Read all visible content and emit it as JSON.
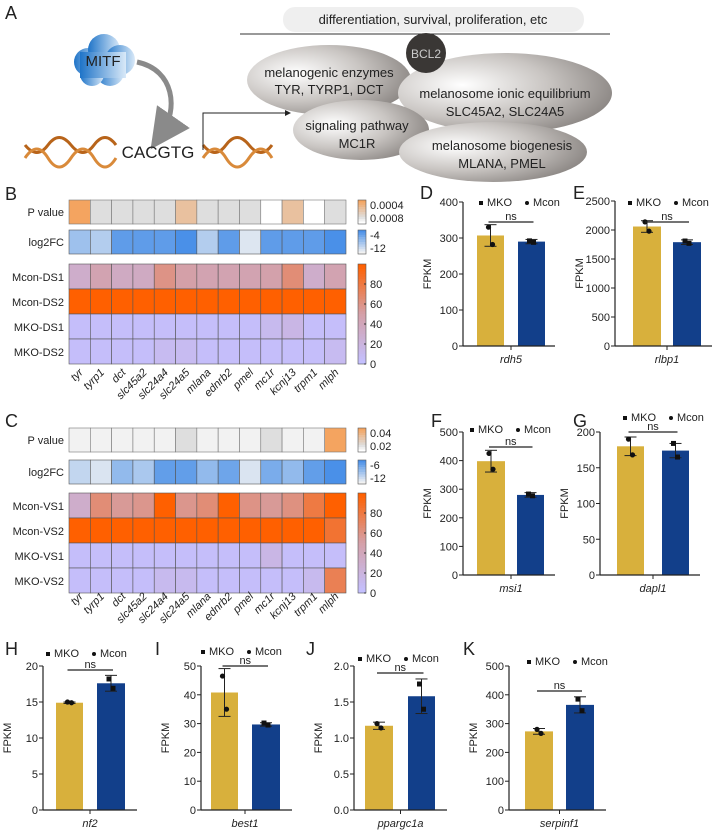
{
  "panel_labels": {
    "A": "A",
    "B": "B",
    "C": "C",
    "D": "D",
    "E": "E",
    "F": "F",
    "G": "G",
    "H": "H",
    "I": "I",
    "J": "J",
    "K": "K"
  },
  "colors": {
    "bar_first": "#d8b03c",
    "bar_second": "#123f8a",
    "expr_low": "#c4c0ff",
    "expr_mid": "#d4a0a8",
    "expr_high": "#ff6000",
    "pval_high": "#f4a460",
    "log2fc_high": "#4a90e8",
    "module_fill": "#8f8a87",
    "bcl2_fill": "#3a3735",
    "mitf_fill": "#2a7fce",
    "dna": "#b8641a"
  },
  "diagram": {
    "top_banner": "differentiation, survival, proliferation, etc",
    "mitf": "MITF",
    "motif": "CACGTG",
    "bcl2": "BCL2",
    "modules": [
      {
        "title": "melanogenic enzymes",
        "genes": "TYR, TYRP1, DCT"
      },
      {
        "title": "melanosome ionic equilibrium",
        "genes": "SLC45A2, SLC24A5"
      },
      {
        "title": "signaling pathway",
        "genes": "MC1R"
      },
      {
        "title": "melanosome biogenesis",
        "genes": "MLANA, PMEL"
      }
    ]
  },
  "chart_data": [
    {
      "type": "heatmap",
      "panel": "B",
      "columns": [
        "tyr",
        "tyrp1",
        "dct",
        "slc45a2",
        "slc24a4",
        "slc24a5",
        "mlana",
        "ednrb2",
        "pmel",
        "mc1r",
        "kcnj13",
        "trpm1",
        "mlph"
      ],
      "p_value": {
        "label": "P value",
        "values": [
          0.0008,
          0.0002,
          0.0002,
          0.0002,
          0.0002,
          0.0005,
          0.0002,
          0.0002,
          0.0002,
          0.0,
          0.0005,
          0.0,
          0.0002
        ],
        "colorbar_labels": [
          "0.0004",
          "0.0008"
        ],
        "range": [
          0,
          0.0008
        ]
      },
      "log2fc": {
        "label": "log2FC",
        "values": [
          -8,
          -9,
          -5,
          -5,
          -5,
          -4,
          -9,
          -5,
          -11,
          -5,
          -5,
          -5,
          -4
        ],
        "colorbar_labels": [
          "-4",
          "-12"
        ],
        "range": [
          -12,
          -4
        ]
      },
      "expression": {
        "rows": [
          {
            "label": "Mcon-DS1",
            "values": [
              30,
              45,
              35,
              35,
              60,
              50,
              45,
              45,
              45,
              48,
              65,
              30,
              45
            ]
          },
          {
            "label": "Mcon-DS2",
            "values": [
              100,
              100,
              100,
              100,
              100,
              100,
              100,
              100,
              100,
              100,
              100,
              100,
              100
            ]
          },
          {
            "label": "MKO-DS1",
            "values": [
              3,
              3,
              3,
              3,
              3,
              3,
              3,
              3,
              3,
              10,
              15,
              3,
              3
            ]
          },
          {
            "label": "MKO-DS2",
            "values": [
              3,
              3,
              3,
              3,
              8,
              8,
              3,
              3,
              3,
              3,
              3,
              3,
              8
            ]
          }
        ],
        "colorbar_labels": [
          "80",
          "60",
          "40",
          "20",
          "0"
        ],
        "range": [
          0,
          100
        ]
      }
    },
    {
      "type": "heatmap",
      "panel": "C",
      "columns": [
        "tyr",
        "tyrp1",
        "dct",
        "slc45a2",
        "slc24a4",
        "slc24a5",
        "mlana",
        "ednrb2",
        "pmel",
        "mc1r",
        "kcnj13",
        "trpm1",
        "mlph"
      ],
      "p_value": {
        "label": "P value",
        "values": [
          0.004,
          0.004,
          0.004,
          0.004,
          0.004,
          0.01,
          0.004,
          0.004,
          0.004,
          0.01,
          0.004,
          0.004,
          0.04
        ],
        "colorbar_labels": [
          "0.04",
          "0.02"
        ],
        "range": [
          0,
          0.04
        ]
      },
      "log2fc": {
        "label": "log2FC",
        "values": [
          -10,
          -11,
          -8,
          -9,
          -6,
          -6,
          -8,
          -6.5,
          -11,
          -7,
          -8,
          -6,
          -5
        ],
        "colorbar_labels": [
          "-6",
          "-12"
        ],
        "range": [
          -12,
          -5
        ]
      },
      "expression": {
        "rows": [
          {
            "label": "Mcon-VS1",
            "values": [
              30,
              65,
              55,
              58,
              100,
              58,
              65,
              100,
              60,
              55,
              62,
              80,
              100
            ]
          },
          {
            "label": "Mcon-VS2",
            "values": [
              100,
              100,
              100,
              100,
              100,
              100,
              100,
              100,
              100,
              100,
              100,
              100,
              85
            ]
          },
          {
            "label": "MKO-VS1",
            "values": [
              3,
              3,
              3,
              3,
              3,
              3,
              3,
              3,
              3,
              15,
              3,
              3,
              3
            ]
          },
          {
            "label": "MKO-VS2",
            "values": [
              3,
              3,
              3,
              3,
              10,
              10,
              3,
              3,
              3,
              3,
              3,
              10,
              75
            ]
          }
        ],
        "colorbar_labels": [
          "80",
          "60",
          "40",
          "20",
          "0"
        ],
        "range": [
          0,
          100
        ]
      }
    },
    {
      "type": "bar",
      "panel": "D",
      "legend": [
        "MKO",
        "Mcon"
      ],
      "ylabel": "FPKM",
      "xlabel": "rdh5",
      "ylim": [
        0,
        400
      ],
      "yticks": [
        "0",
        "100",
        "200",
        "300",
        "400"
      ],
      "annotation": "ns",
      "bars": [
        {
          "value": 307,
          "error": 30,
          "points": [
            330,
            282
          ]
        },
        {
          "value": 290,
          "error": 6,
          "points": [
            292,
            288
          ]
        }
      ]
    },
    {
      "type": "bar",
      "panel": "E",
      "legend": [
        "MKO",
        "Mcon"
      ],
      "ylabel": "FPKM",
      "xlabel": "rlbp1",
      "ylim": [
        0,
        2500
      ],
      "yticks": [
        "0",
        "500",
        "1000",
        "1500",
        "2000",
        "2500"
      ],
      "annotation": "ns",
      "bars": [
        {
          "value": 2060,
          "error": 100,
          "points": [
            2140,
            1980
          ]
        },
        {
          "value": 1790,
          "error": 40,
          "points": [
            1810,
            1770
          ]
        }
      ]
    },
    {
      "type": "bar",
      "panel": "F",
      "legend": [
        "MKO",
        "Mcon"
      ],
      "ylabel": "FPKM",
      "xlabel": "msi1",
      "ylim": [
        0,
        500
      ],
      "yticks": [
        "0",
        "100",
        "200",
        "300",
        "400",
        "500"
      ],
      "annotation": "ns",
      "bars": [
        {
          "value": 398,
          "error": 38,
          "points": [
            425,
            370
          ]
        },
        {
          "value": 280,
          "error": 8,
          "points": [
            283,
            277
          ]
        }
      ]
    },
    {
      "type": "bar",
      "panel": "G",
      "legend": [
        "MKO",
        "Mcon"
      ],
      "ylabel": "FPKM",
      "xlabel": "dapl1",
      "ylim": [
        0,
        200
      ],
      "yticks": [
        "0",
        "50",
        "100",
        "150",
        "200"
      ],
      "annotation": "ns",
      "bars": [
        {
          "value": 180,
          "error": 13,
          "points": [
            190,
            168
          ]
        },
        {
          "value": 174,
          "error": 10,
          "points": [
            184,
            165
          ]
        }
      ]
    },
    {
      "type": "bar",
      "panel": "H",
      "legend": [
        "MKO",
        "Mcon"
      ],
      "ylabel": "FPKM",
      "xlabel": "nf2",
      "ylim": [
        0,
        20
      ],
      "yticks": [
        "0",
        "5",
        "10",
        "15",
        "20"
      ],
      "annotation": "ns",
      "bars": [
        {
          "value": 14.9,
          "error": 0.1,
          "points": [
            15.0,
            14.9
          ]
        },
        {
          "value": 17.6,
          "error": 1.1,
          "points": [
            18.2,
            16.9
          ]
        }
      ]
    },
    {
      "type": "bar",
      "panel": "I",
      "legend": [
        "MKO",
        "Mcon"
      ],
      "ylabel": "FPKM",
      "xlabel": "best1",
      "ylim": [
        0,
        50
      ],
      "yticks": [
        "0",
        "10",
        "20",
        "30",
        "40",
        "50"
      ],
      "annotation": "ns",
      "bars": [
        {
          "value": 40.8,
          "error": 8.3,
          "points": [
            46.5,
            35
          ]
        },
        {
          "value": 29.7,
          "error": 0.6,
          "points": [
            30.2,
            29.5
          ]
        }
      ]
    },
    {
      "type": "bar",
      "panel": "J",
      "legend": [
        "MKO",
        "Mcon"
      ],
      "ylabel": "FPKM",
      "xlabel": "ppargc1a",
      "ylim": [
        0,
        2.0
      ],
      "yticks": [
        "0.0",
        "0.5",
        "1.0",
        "1.5",
        "2.0"
      ],
      "annotation": "ns",
      "bars": [
        {
          "value": 1.17,
          "error": 0.05,
          "points": [
            1.2,
            1.14
          ]
        },
        {
          "value": 1.58,
          "error": 0.24,
          "points": [
            1.75,
            1.4
          ]
        }
      ]
    },
    {
      "type": "bar",
      "panel": "K",
      "legend": [
        "MKO",
        "Mcon"
      ],
      "ylabel": "FPKM",
      "xlabel": "serpinf1",
      "ylim": [
        0,
        500
      ],
      "yticks": [
        "0",
        "100",
        "200",
        "300",
        "400",
        "500"
      ],
      "annotation": "ns",
      "bars": [
        {
          "value": 273,
          "error": 10,
          "points": [
            280,
            266
          ]
        },
        {
          "value": 365,
          "error": 28,
          "points": [
            385,
            345
          ]
        }
      ]
    }
  ]
}
